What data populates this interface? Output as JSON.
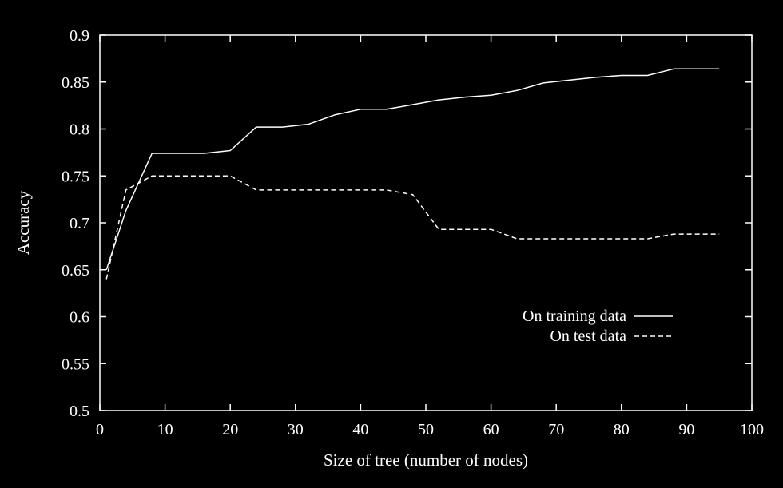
{
  "chart_data": {
    "type": "line",
    "title": "",
    "xlabel": "Size of tree (number of nodes)",
    "ylabel": "Accuracy",
    "xlim": [
      0,
      100
    ],
    "ylim": [
      0.5,
      0.9
    ],
    "xticks": [
      0,
      10,
      20,
      30,
      40,
      50,
      60,
      70,
      80,
      90,
      100
    ],
    "yticks": [
      0.5,
      0.55,
      0.6,
      0.65,
      0.7,
      0.75,
      0.8,
      0.85,
      0.9
    ],
    "yticks_text": [
      "0.5",
      "0.55",
      "0.6",
      "0.65",
      "0.7",
      "0.75",
      "0.8",
      "0.85",
      "0.9"
    ],
    "grid": false,
    "legend_position": "right-middle",
    "background": "#000000",
    "foreground": "#ffffff",
    "series": [
      {
        "name": "On training data",
        "style": "solid",
        "color": "#ffffff",
        "x": [
          1,
          4,
          8,
          12,
          16,
          20,
          24,
          28,
          32,
          36,
          40,
          44,
          48,
          52,
          56,
          60,
          64,
          68,
          72,
          76,
          80,
          84,
          88,
          92,
          95
        ],
        "y": [
          0.65,
          0.713,
          0.774,
          0.774,
          0.774,
          0.777,
          0.802,
          0.802,
          0.805,
          0.815,
          0.821,
          0.821,
          0.826,
          0.831,
          0.834,
          0.836,
          0.841,
          0.849,
          0.852,
          0.855,
          0.857,
          0.857,
          0.864,
          0.864,
          0.864
        ]
      },
      {
        "name": "On test data",
        "style": "dashed",
        "color": "#ffffff",
        "x": [
          1,
          4,
          8,
          12,
          16,
          20,
          24,
          28,
          32,
          36,
          40,
          44,
          48,
          52,
          56,
          60,
          64,
          68,
          72,
          76,
          80,
          84,
          88,
          92,
          95
        ],
        "y": [
          0.64,
          0.735,
          0.75,
          0.75,
          0.75,
          0.75,
          0.735,
          0.735,
          0.735,
          0.735,
          0.735,
          0.735,
          0.73,
          0.693,
          0.693,
          0.693,
          0.683,
          0.683,
          0.683,
          0.683,
          0.683,
          0.683,
          0.688,
          0.688,
          0.688
        ]
      }
    ]
  }
}
